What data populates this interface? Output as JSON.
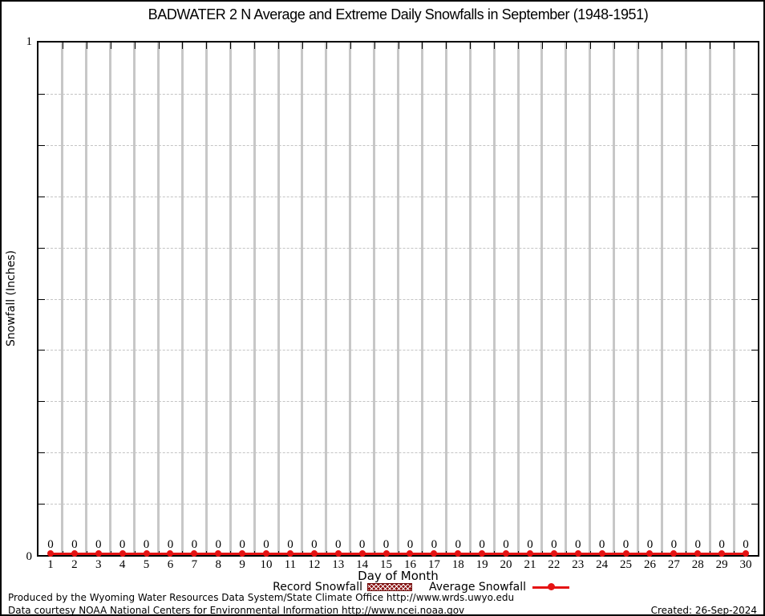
{
  "title": "BADWATER 2 N Average and Extreme Daily Snowfalls in September (1948-1951)",
  "y_axis": {
    "label": "Snowfall (Inches)",
    "max_tick_label": "1",
    "min_tick_label": "0"
  },
  "x_axis": {
    "label": "Day of Month"
  },
  "legend": {
    "record_label": "Record Snowfall",
    "average_label": "Average Snowfall"
  },
  "footer": {
    "line1": "Produced by the Wyoming Water Resources Data System/State Climate Office http://www.wrds.uwyo.edu",
    "line2": "Data courtesy NOAA National Centers for Environmental Information http://www.ncei.noaa.gov",
    "created": "Created: 26-Sep-2024"
  },
  "colors": {
    "series_red": "#e51313",
    "record_dark_red": "#8b1212",
    "grid_gray": "#c7c7c7",
    "axis_black": "#000000"
  },
  "chart_data": {
    "type": "line",
    "title": "BADWATER 2 N Average and Extreme Daily Snowfalls in September (1948-1951)",
    "xlabel": "Day of Month",
    "ylabel": "Snowfall (Inches)",
    "ylim": [
      0,
      1
    ],
    "xlim": [
      0.5,
      30.5
    ],
    "y_gridline_step": 0.1,
    "grid": true,
    "legend_position": "bottom",
    "x": [
      1,
      2,
      3,
      4,
      5,
      6,
      7,
      8,
      9,
      10,
      11,
      12,
      13,
      14,
      15,
      16,
      17,
      18,
      19,
      20,
      21,
      22,
      23,
      24,
      25,
      26,
      27,
      28,
      29,
      30
    ],
    "series": [
      {
        "name": "Record Snowfall",
        "style": "hatched-box",
        "values": [
          0,
          0,
          0,
          0,
          0,
          0,
          0,
          0,
          0,
          0,
          0,
          0,
          0,
          0,
          0,
          0,
          0,
          0,
          0,
          0,
          0,
          0,
          0,
          0,
          0,
          0,
          0,
          0,
          0,
          0
        ]
      },
      {
        "name": "Average Snowfall",
        "style": "line-point",
        "values": [
          0,
          0,
          0,
          0,
          0,
          0,
          0,
          0,
          0,
          0,
          0,
          0,
          0,
          0,
          0,
          0,
          0,
          0,
          0,
          0,
          0,
          0,
          0,
          0,
          0,
          0,
          0,
          0,
          0,
          0
        ]
      }
    ],
    "point_labels": [
      "0",
      "0",
      "0",
      "0",
      "0",
      "0",
      "0",
      "0",
      "0",
      "0",
      "0",
      "0",
      "0",
      "0",
      "0",
      "0",
      "0",
      "0",
      "0",
      "0",
      "0",
      "0",
      "0",
      "0",
      "0",
      "0",
      "0",
      "0",
      "0",
      "0"
    ]
  }
}
